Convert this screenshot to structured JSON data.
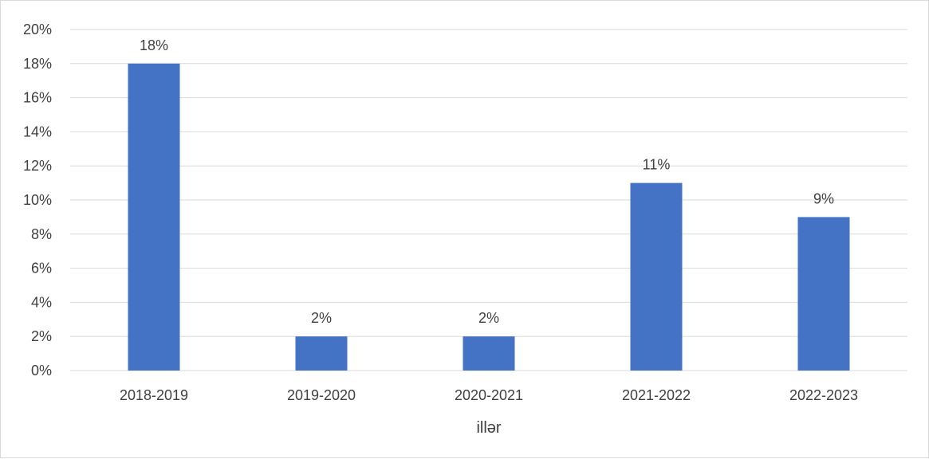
{
  "chart_data": {
    "type": "bar",
    "categories": [
      "2018-2019",
      "2019-2020",
      "2020-2021",
      "2021-2022",
      "2022-2023"
    ],
    "values": [
      18,
      2,
      2,
      11,
      9
    ],
    "data_labels": [
      "18%",
      "2%",
      "2%",
      "11%",
      "9%"
    ],
    "title": "",
    "xlabel": "illər",
    "ylabel": "",
    "ylim": [
      0,
      20
    ],
    "yticks": [
      0,
      2,
      4,
      6,
      8,
      10,
      12,
      14,
      16,
      18,
      20
    ],
    "ytick_labels": [
      "0%",
      "2%",
      "4%",
      "6%",
      "8%",
      "10%",
      "12%",
      "14%",
      "16%",
      "18%",
      "20%"
    ],
    "grid": true,
    "legend": "none",
    "colors": {
      "bar": "#4472C4",
      "grid": "#d9d9d9",
      "text": "#404040"
    }
  }
}
